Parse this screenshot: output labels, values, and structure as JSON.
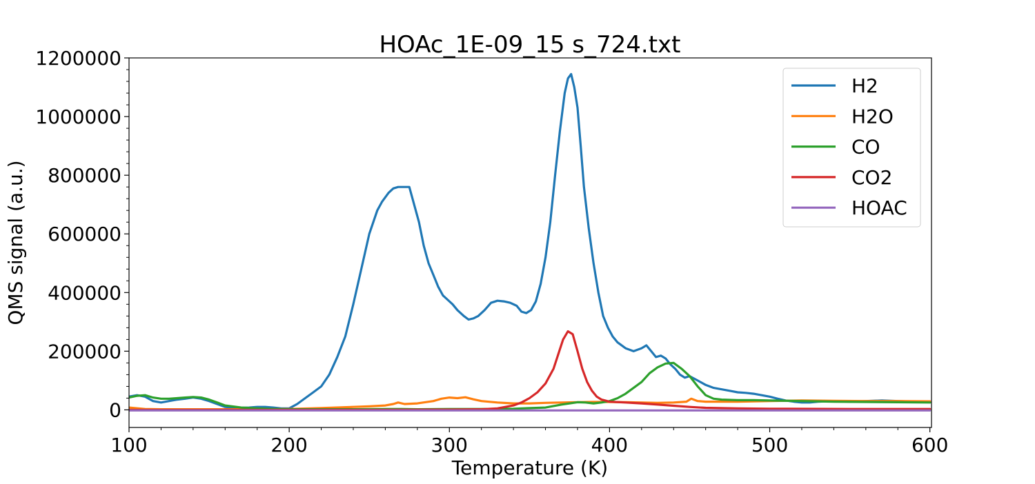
{
  "chart_data": {
    "type": "line",
    "title": "HOAc_1E-09_15 s_724.txt",
    "xlabel": "Temperature (K)",
    "ylabel": "QMS signal (a.u.)",
    "xlim": [
      100,
      601
    ],
    "ylim": [
      -60000,
      1200000
    ],
    "xticks": [
      100,
      200,
      300,
      400,
      500,
      600
    ],
    "yticks": [
      0,
      200000,
      400000,
      600000,
      800000,
      1000000,
      1200000
    ],
    "grid": false,
    "legend_position": "top-right",
    "series": [
      {
        "name": "H2",
        "color": "#1f77b4",
        "x": [
          100,
          105,
          110,
          115,
          120,
          125,
          130,
          135,
          140,
          145,
          150,
          155,
          160,
          165,
          170,
          175,
          180,
          185,
          190,
          195,
          200,
          205,
          210,
          215,
          220,
          225,
          230,
          235,
          240,
          245,
          250,
          255,
          258,
          262,
          265,
          268,
          270,
          275,
          278,
          281,
          284,
          287,
          290,
          293,
          296,
          299,
          302,
          305,
          309,
          312,
          315,
          318,
          322,
          326,
          330,
          334,
          338,
          342,
          345,
          348,
          351,
          354,
          357,
          360,
          363,
          366,
          369,
          372,
          374,
          376,
          378,
          380,
          382,
          384,
          387,
          390,
          393,
          396,
          399,
          402,
          405,
          410,
          415,
          420,
          423,
          426,
          429,
          432,
          435,
          438,
          441,
          444,
          447,
          450,
          455,
          460,
          465,
          470,
          475,
          480,
          485,
          490,
          495,
          500,
          505,
          510,
          515,
          520,
          525,
          530,
          540,
          550,
          560,
          570,
          580,
          590,
          600
        ],
        "values": [
          45000,
          50000,
          45000,
          30000,
          25000,
          30000,
          35000,
          38000,
          42000,
          38000,
          30000,
          20000,
          10000,
          8000,
          7000,
          8000,
          10000,
          10000,
          8000,
          5000,
          5000,
          20000,
          40000,
          60000,
          80000,
          120000,
          180000,
          250000,
          360000,
          480000,
          600000,
          680000,
          710000,
          740000,
          755000,
          760000,
          760000,
          760000,
          700000,
          640000,
          560000,
          500000,
          460000,
          420000,
          390000,
          375000,
          360000,
          340000,
          320000,
          308000,
          312000,
          320000,
          340000,
          365000,
          372000,
          370000,
          365000,
          355000,
          335000,
          330000,
          340000,
          370000,
          430000,
          520000,
          640000,
          800000,
          950000,
          1080000,
          1130000,
          1145000,
          1100000,
          1030000,
          900000,
          760000,
          620000,
          500000,
          400000,
          320000,
          280000,
          250000,
          230000,
          210000,
          200000,
          210000,
          220000,
          200000,
          180000,
          185000,
          175000,
          155000,
          140000,
          120000,
          110000,
          115000,
          100000,
          85000,
          75000,
          70000,
          65000,
          60000,
          58000,
          55000,
          50000,
          45000,
          38000,
          32000,
          28000,
          25000,
          25000,
          28000,
          30000,
          28000,
          30000,
          32000,
          30000,
          28000,
          26000
        ]
      },
      {
        "name": "H2O",
        "color": "#ff7f0e",
        "x": [
          100,
          110,
          120,
          140,
          160,
          180,
          200,
          220,
          240,
          250,
          260,
          265,
          268,
          272,
          280,
          290,
          295,
          300,
          305,
          310,
          315,
          320,
          330,
          340,
          350,
          360,
          370,
          380,
          390,
          400,
          410,
          420,
          430,
          440,
          448,
          451,
          455,
          460,
          480,
          500,
          520,
          540,
          560,
          580,
          600
        ],
        "values": [
          8000,
          3000,
          2000,
          2000,
          2000,
          2000,
          3000,
          6000,
          10000,
          12000,
          15000,
          20000,
          25000,
          20000,
          22000,
          30000,
          38000,
          42000,
          40000,
          43000,
          36000,
          30000,
          25000,
          22000,
          22000,
          24000,
          25000,
          26000,
          27000,
          27000,
          26000,
          25000,
          24000,
          25000,
          28000,
          38000,
          30000,
          28000,
          28000,
          30000,
          32000,
          31000,
          30000,
          30000,
          29000
        ]
      },
      {
        "name": "CO",
        "color": "#2ca02c",
        "x": [
          100,
          105,
          110,
          115,
          120,
          125,
          130,
          135,
          140,
          145,
          150,
          155,
          160,
          170,
          180,
          190,
          200,
          220,
          240,
          260,
          270,
          280,
          300,
          320,
          340,
          360,
          370,
          380,
          385,
          390,
          395,
          400,
          405,
          410,
          415,
          420,
          425,
          430,
          435,
          440,
          445,
          450,
          455,
          460,
          465,
          470,
          480,
          490,
          500,
          520,
          540,
          560,
          580,
          600
        ],
        "values": [
          42000,
          48000,
          50000,
          42000,
          38000,
          38000,
          40000,
          42000,
          44000,
          42000,
          35000,
          25000,
          15000,
          8000,
          5000,
          3000,
          2000,
          2000,
          2000,
          3000,
          3000,
          2000,
          3000,
          3000,
          4000,
          8000,
          18000,
          26000,
          25000,
          22000,
          25000,
          30000,
          40000,
          55000,
          75000,
          95000,
          125000,
          145000,
          158000,
          160000,
          140000,
          115000,
          80000,
          50000,
          38000,
          35000,
          33000,
          33000,
          32000,
          30000,
          28000,
          27000,
          26000,
          25000
        ]
      },
      {
        "name": "CO2",
        "color": "#d62728",
        "x": [
          100,
          150,
          200,
          250,
          300,
          320,
          330,
          340,
          345,
          350,
          355,
          360,
          365,
          368,
          371,
          374,
          377,
          380,
          383,
          386,
          389,
          392,
          395,
          400,
          410,
          420,
          430,
          440,
          450,
          460,
          480,
          500,
          550,
          600
        ],
        "values": [
          0,
          0,
          0,
          0,
          1000,
          2000,
          5000,
          15000,
          25000,
          40000,
          60000,
          90000,
          140000,
          190000,
          240000,
          268000,
          258000,
          200000,
          140000,
          95000,
          65000,
          45000,
          35000,
          28000,
          25000,
          22000,
          18000,
          14000,
          10000,
          7000,
          5000,
          4000,
          3000,
          3000
        ]
      },
      {
        "name": "HOAC",
        "color": "#9467bd",
        "x": [
          100,
          200,
          300,
          400,
          500,
          600
        ],
        "values": [
          -2000,
          -2000,
          -2000,
          -2000,
          -2000,
          -2000
        ]
      }
    ]
  }
}
